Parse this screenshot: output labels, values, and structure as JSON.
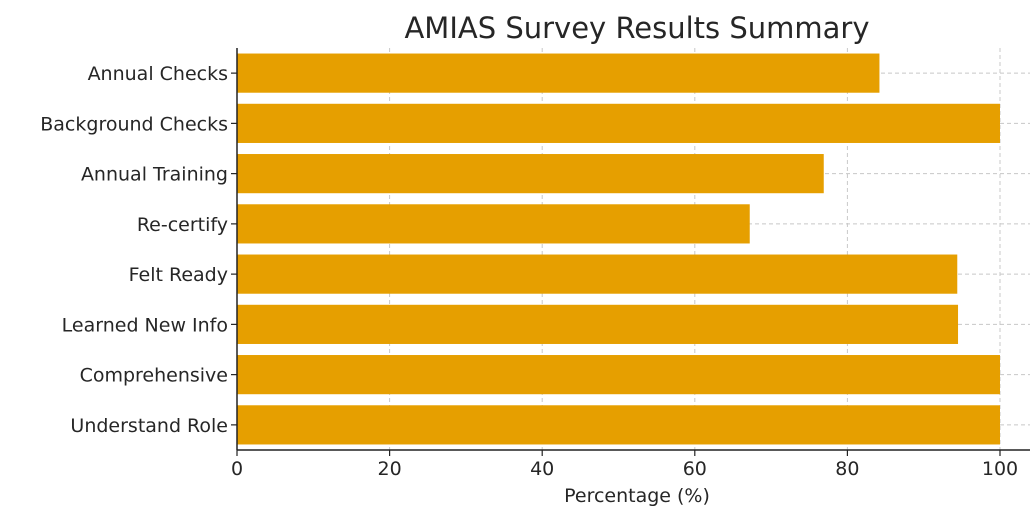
{
  "chart_data": {
    "type": "bar",
    "orientation": "horizontal",
    "title": "AMIAS Survey Results Summary",
    "xlabel": "Percentage (%)",
    "ylabel": "",
    "xlim": [
      0,
      100
    ],
    "xticks": [
      0,
      20,
      40,
      60,
      80,
      100
    ],
    "grid": true,
    "bar_color": "#E69F00",
    "categories": [
      "Annual Checks",
      "Background Checks",
      "Annual Training",
      "Re-certify",
      "Felt Ready",
      "Learned New Info",
      "Comprehensive",
      "Understand Role"
    ],
    "values": [
      84.2,
      100,
      76.9,
      67.2,
      94.4,
      94.5,
      100,
      100
    ]
  }
}
